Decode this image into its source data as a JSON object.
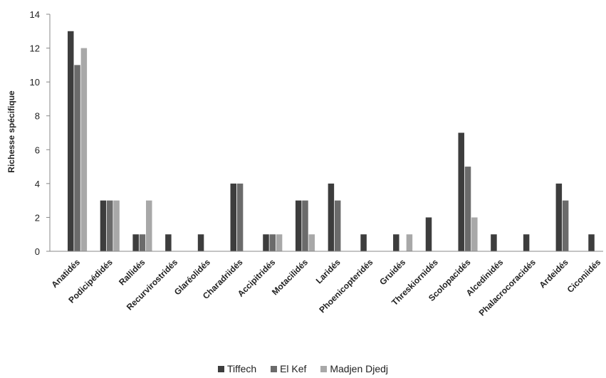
{
  "chart_data": {
    "type": "bar",
    "title": "",
    "xlabel": "",
    "ylabel": "Richesse spécifique",
    "ylim": [
      0,
      14
    ],
    "yticks": [
      "0",
      "2",
      "4",
      "6",
      "8",
      "10",
      "12",
      "14"
    ],
    "grid": false,
    "legend_position": "bottom",
    "categories": [
      "Anatidés",
      "Podicipédidés",
      "Rallidés",
      "Recurvirostridés",
      "Glaréolidés",
      "Charadriidés",
      "Accipitridés",
      "Motacilidés",
      "Laridés",
      "Phoenicopteridés",
      "Gruidés",
      "Threskiornidés",
      "Scolopacidés",
      "Alcedinidés",
      "Phalacrocoracidés",
      "Ardeidés",
      "Ciconiidés"
    ],
    "series": [
      {
        "name": "Tiffech",
        "color": "#3d3d3d",
        "values": [
          13,
          3,
          1,
          1,
          1,
          4,
          1,
          3,
          4,
          1,
          1,
          2,
          7,
          1,
          1,
          4,
          1
        ]
      },
      {
        "name": "El Kef",
        "color": "#6b6b6b",
        "values": [
          11,
          3,
          1,
          0,
          0,
          4,
          1,
          3,
          3,
          0,
          0,
          0,
          5,
          0,
          0,
          3,
          0
        ]
      },
      {
        "name": "Madjen Djedj",
        "color": "#a8a8a8",
        "values": [
          12,
          3,
          3,
          0,
          0,
          0,
          1,
          1,
          0,
          0,
          1,
          0,
          2,
          0,
          0,
          0,
          0
        ]
      }
    ]
  }
}
